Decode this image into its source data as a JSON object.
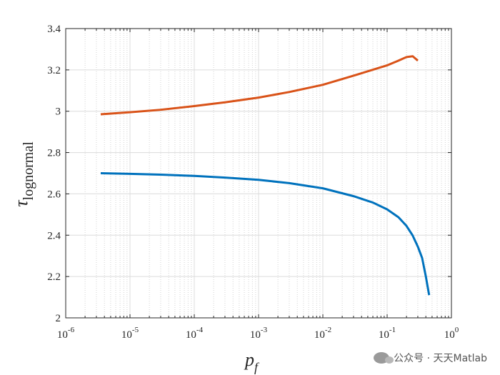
{
  "chart_data": {
    "type": "line",
    "xscale": "log",
    "xlim": [
      1e-06,
      1
    ],
    "ylim": [
      2,
      3.4
    ],
    "xticks": [
      {
        "value": 1e-06,
        "base": "10",
        "exp": "-6"
      },
      {
        "value": 1e-05,
        "base": "10",
        "exp": "-5"
      },
      {
        "value": 0.0001,
        "base": "10",
        "exp": "-4"
      },
      {
        "value": 0.001,
        "base": "10",
        "exp": "-3"
      },
      {
        "value": 0.01,
        "base": "10",
        "exp": "-2"
      },
      {
        "value": 0.1,
        "base": "10",
        "exp": "-1"
      },
      {
        "value": 1,
        "base": "10",
        "exp": "0"
      }
    ],
    "yticks": [
      "2",
      "2.2",
      "2.4",
      "2.6",
      "2.8",
      "3",
      "3.2",
      "3.4"
    ],
    "xlabel": {
      "main": "p",
      "sub": "f"
    },
    "ylabel": {
      "main": "τ",
      "sub": "lognormal"
    },
    "grid": "major and minor",
    "series": [
      {
        "color": "#D95319",
        "x": [
          3.5e-06,
          1e-05,
          3e-05,
          0.0001,
          0.0003,
          0.001,
          0.003,
          0.01,
          0.03,
          0.1,
          0.15,
          0.2,
          0.25,
          0.3
        ],
        "y": [
          2.985,
          2.995,
          3.007,
          3.025,
          3.043,
          3.066,
          3.093,
          3.128,
          3.172,
          3.222,
          3.245,
          3.262,
          3.266,
          3.245
        ]
      },
      {
        "color": "#0072BD",
        "x": [
          3.5e-06,
          1e-05,
          3e-05,
          0.0001,
          0.0003,
          0.001,
          0.003,
          0.01,
          0.03,
          0.06,
          0.1,
          0.15,
          0.2,
          0.25,
          0.3,
          0.35,
          0.4,
          0.45
        ],
        "y": [
          2.7,
          2.697,
          2.693,
          2.687,
          2.679,
          2.668,
          2.652,
          2.627,
          2.589,
          2.558,
          2.525,
          2.487,
          2.445,
          2.398,
          2.345,
          2.29,
          2.2,
          2.11
        ]
      }
    ]
  },
  "watermark": {
    "text": "公众号 · 天天Matlab",
    "icon": "wechat-icon"
  }
}
